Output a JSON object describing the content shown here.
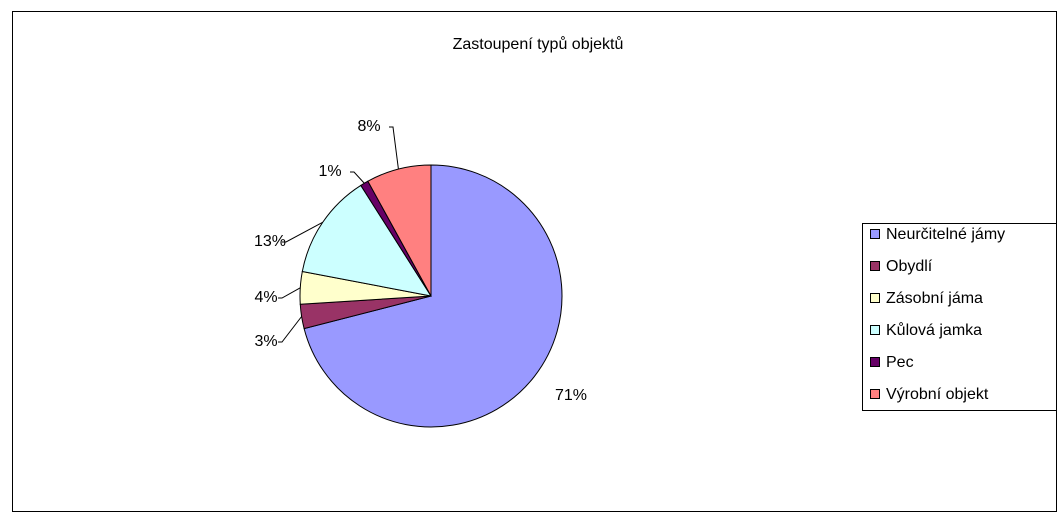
{
  "chart_data": {
    "type": "pie",
    "title": "Zastoupení typů objektů",
    "categories": [
      "Neurčitelné jámy",
      "Obydlí",
      "Zásobní jáma",
      "Kůlová jamka",
      "Pec",
      "Výrobní objekt"
    ],
    "values": [
      71,
      3,
      4,
      13,
      1,
      8
    ],
    "value_labels": [
      "71%",
      "3%",
      "4%",
      "13%",
      "1%",
      "8%"
    ],
    "colors": [
      "#9999ff",
      "#993366",
      "#ffffcc",
      "#ccffff",
      "#660066",
      "#ff8080"
    ],
    "legend": "right"
  }
}
